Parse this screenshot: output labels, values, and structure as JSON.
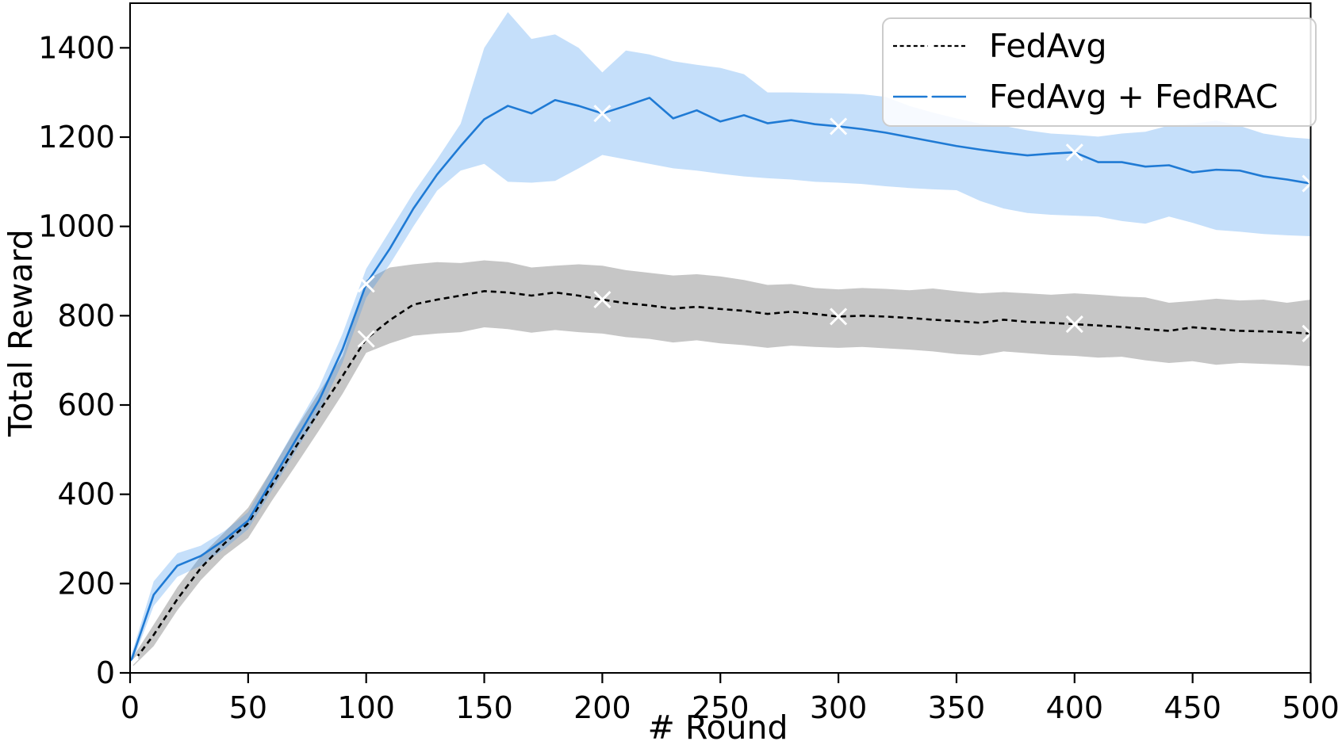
{
  "chart_data": {
    "type": "line",
    "title": "",
    "xlabel": "# Round",
    "ylabel": "Total Reward",
    "xlim": [
      0,
      500
    ],
    "ylim": [
      0,
      1500
    ],
    "grid": false,
    "legend_position": "upper right",
    "marker": "x",
    "marker_color": "#ffffff",
    "mark_every_rounds": 100,
    "x_ticks": [
      0,
      50,
      100,
      150,
      200,
      250,
      300,
      350,
      400,
      450,
      500
    ],
    "y_ticks": [
      0,
      200,
      400,
      600,
      800,
      1000,
      1200,
      1400
    ],
    "x": [
      0,
      10,
      20,
      30,
      40,
      50,
      60,
      70,
      80,
      90,
      100,
      110,
      120,
      130,
      140,
      150,
      160,
      170,
      180,
      190,
      200,
      210,
      220,
      230,
      240,
      250,
      260,
      270,
      280,
      290,
      300,
      310,
      320,
      330,
      340,
      350,
      360,
      370,
      380,
      390,
      400,
      410,
      420,
      430,
      440,
      450,
      460,
      470,
      480,
      490,
      500
    ],
    "series": [
      {
        "name": "FedAvg",
        "color": "#000000",
        "style": "dashed",
        "band_color": "rgba(128,128,128,0.45)",
        "values": [
          15,
          85,
          165,
          235,
          290,
          335,
          420,
          505,
          585,
          665,
          748,
          790,
          825,
          836,
          845,
          855,
          852,
          845,
          852,
          845,
          836,
          828,
          823,
          816,
          820,
          815,
          811,
          804,
          809,
          804,
          798,
          800,
          798,
          795,
          791,
          788,
          784,
          791,
          786,
          784,
          781,
          778,
          775,
          770,
          766,
          774,
          770,
          766,
          765,
          763,
          760
        ],
        "band_upper": [
          25,
          108,
          192,
          262,
          315,
          370,
          455,
          545,
          628,
          710,
          880,
          908,
          915,
          920,
          918,
          924,
          920,
          908,
          912,
          915,
          912,
          902,
          896,
          890,
          893,
          888,
          880,
          869,
          871,
          862,
          859,
          862,
          860,
          857,
          861,
          855,
          850,
          853,
          850,
          847,
          850,
          847,
          843,
          841,
          829,
          833,
          838,
          834,
          836,
          829,
          836
        ],
        "band_lower": [
          8,
          60,
          140,
          208,
          262,
          302,
          385,
          463,
          543,
          625,
          717,
          738,
          755,
          760,
          763,
          774,
          770,
          762,
          768,
          763,
          760,
          752,
          748,
          740,
          745,
          738,
          734,
          728,
          733,
          730,
          728,
          730,
          727,
          724,
          720,
          714,
          711,
          720,
          716,
          712,
          710,
          706,
          708,
          700,
          694,
          698,
          690,
          694,
          692,
          690,
          687
        ]
      },
      {
        "name": "FedAvg + FedRAC",
        "color": "#1f7ad4",
        "style": "solid",
        "band_color": "rgba(64,148,240,0.30)",
        "values": [
          20,
          175,
          240,
          262,
          298,
          341,
          430,
          520,
          610,
          725,
          871,
          950,
          1040,
          1116,
          1180,
          1240,
          1270,
          1253,
          1283,
          1270,
          1253,
          1270,
          1288,
          1242,
          1260,
          1235,
          1249,
          1231,
          1238,
          1229,
          1224,
          1218,
          1210,
          1200,
          1190,
          1180,
          1172,
          1165,
          1159,
          1163,
          1166,
          1144,
          1144,
          1134,
          1137,
          1121,
          1127,
          1125,
          1112,
          1105,
          1096
        ],
        "band_upper": [
          30,
          205,
          268,
          285,
          318,
          360,
          455,
          548,
          640,
          760,
          905,
          990,
          1075,
          1150,
          1230,
          1400,
          1480,
          1420,
          1430,
          1400,
          1345,
          1394,
          1385,
          1370,
          1362,
          1355,
          1341,
          1300,
          1300,
          1299,
          1298,
          1296,
          1290,
          1270,
          1255,
          1242,
          1230,
          1225,
          1215,
          1208,
          1205,
          1201,
          1208,
          1212,
          1226,
          1230,
          1237,
          1225,
          1208,
          1200,
          1196
        ],
        "band_lower": [
          10,
          150,
          215,
          240,
          278,
          322,
          408,
          495,
          582,
          695,
          840,
          915,
          1000,
          1080,
          1125,
          1140,
          1100,
          1098,
          1102,
          1130,
          1160,
          1150,
          1140,
          1130,
          1125,
          1118,
          1112,
          1108,
          1105,
          1100,
          1098,
          1095,
          1090,
          1086,
          1083,
          1081,
          1057,
          1040,
          1030,
          1026,
          1024,
          1022,
          1012,
          1006,
          1022,
          1008,
          992,
          988,
          983,
          980,
          978
        ]
      }
    ]
  },
  "legend": {
    "items": [
      {
        "label": "FedAvg"
      },
      {
        "label": "FedAvg + FedRAC"
      }
    ]
  }
}
